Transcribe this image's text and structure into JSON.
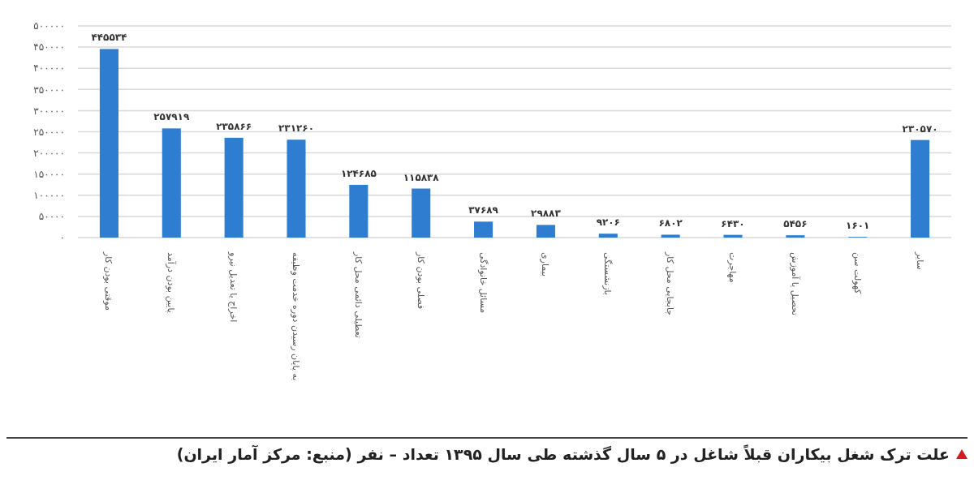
{
  "chart_data": {
    "type": "bar",
    "title": "علت ترک شغل بیکاران قبلاً شاغل در ۵ سال گذشته طی سال ۱۳۹۵ تعداد – نفر (منبع: مرکز آمار ایران)",
    "categories": [
      "موقتی بودن کار",
      "پایین بودن درآمد",
      "اخراج یا تعدیل نیرو",
      "به پایان رسیدن دوره خدمت وظیفه",
      "تعطیلی دائمی محل کار",
      "فصلی بودن کار",
      "مسائل خانوادگی",
      "بیماری",
      "بازنشستگی",
      "جابجایی محل کار",
      "مهاجرت",
      "تحصیل یا آموزش",
      "کهولت سن",
      "سایر"
    ],
    "values": [
      445534,
      257919,
      235866,
      231260,
      124685,
      115838,
      37689,
      29883,
      9206,
      6802,
      6430,
      5456,
      1601,
      230570
    ],
    "value_labels": [
      "۴۴۵۵۳۴",
      "۲۵۷۹۱۹",
      "۲۳۵۸۶۶",
      "۲۳۱۲۶۰",
      "۱۲۴۶۸۵",
      "۱۱۵۸۳۸",
      "۳۷۶۸۹",
      "۲۹۸۸۳",
      "۹۲۰۶",
      "۶۸۰۲",
      "۶۴۳۰",
      "۵۴۵۶",
      "۱۶۰۱",
      "۲۳۰۵۷۰"
    ],
    "color": "#2e7dd1",
    "ylim": [
      0,
      500000
    ],
    "yticks": [
      {
        "value": 0,
        "label": "۰"
      },
      {
        "value": 50000,
        "label": "۵۰۰۰۰"
      },
      {
        "value": 100000,
        "label": "۱۰۰۰۰۰"
      },
      {
        "value": 150000,
        "label": "۱۵۰۰۰۰"
      },
      {
        "value": 200000,
        "label": "۲۰۰۰۰۰"
      },
      {
        "value": 250000,
        "label": "۲۵۰۰۰۰"
      },
      {
        "value": 300000,
        "label": "۳۰۰۰۰۰"
      },
      {
        "value": 350000,
        "label": "۳۵۰۰۰۰"
      },
      {
        "value": 400000,
        "label": "۴۰۰۰۰۰"
      },
      {
        "value": 450000,
        "label": "۴۵۰۰۰۰"
      },
      {
        "value": 500000,
        "label": "۵۰۰۰۰۰"
      }
    ],
    "grid": "y"
  }
}
